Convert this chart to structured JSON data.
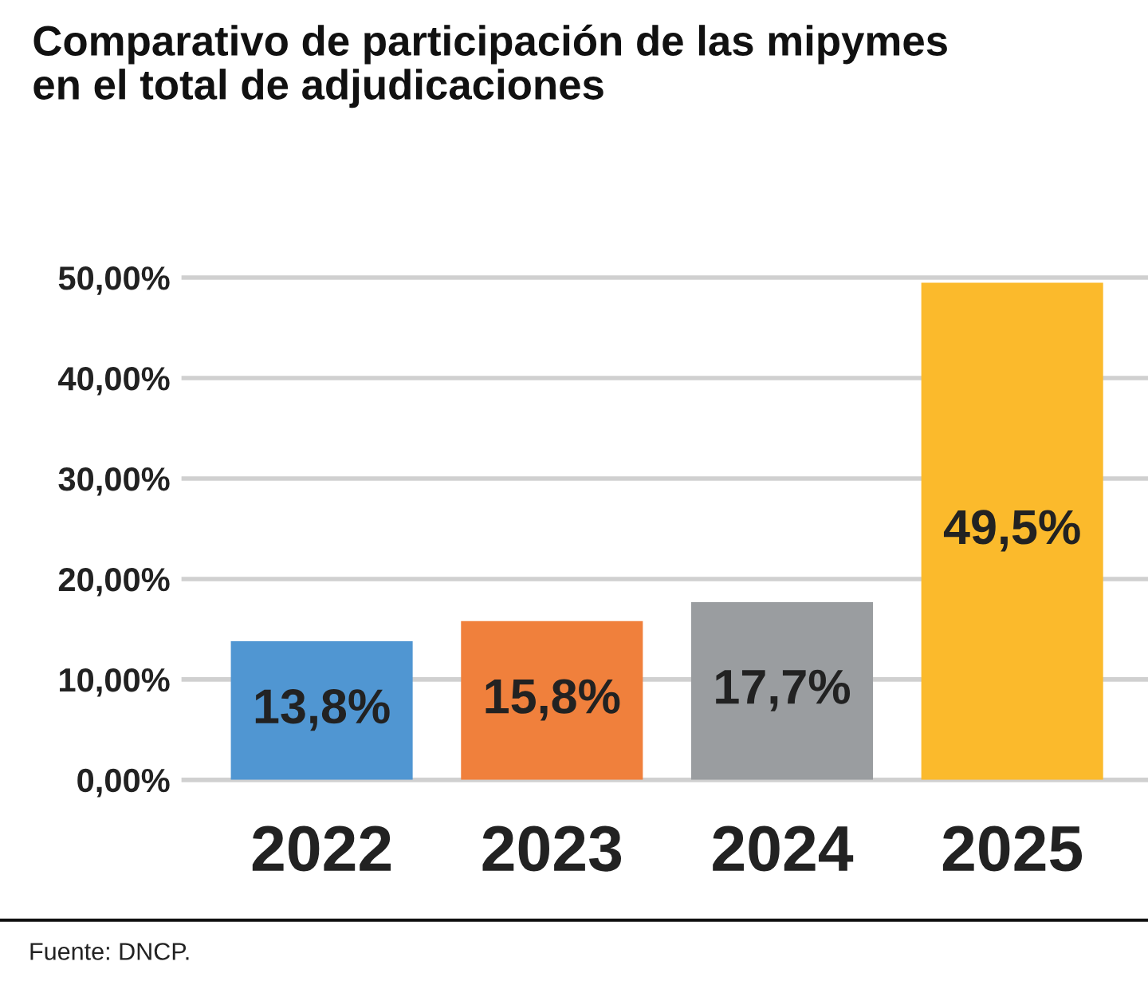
{
  "chart_data": {
    "type": "bar",
    "title": "Comparativo de participación de las mipymes\nen el total de adjudicaciones",
    "categories": [
      "2022",
      "2023",
      "2024",
      "2025"
    ],
    "values": [
      13.8,
      15.8,
      17.7,
      49.5
    ],
    "colors": [
      "#5096d2",
      "#f0803c",
      "#9a9da0",
      "#fbba2c"
    ],
    "value_labels": [
      "13,8%",
      "15,8%",
      "17,7%",
      "49,5%"
    ],
    "ylim": [
      0,
      50
    ],
    "yticks": [
      {
        "value": 0,
        "label": "0,00%"
      },
      {
        "value": 10,
        "label": "10,00%"
      },
      {
        "value": 20,
        "label": "20,00%"
      },
      {
        "value": 30,
        "label": "30,00%"
      },
      {
        "value": 40,
        "label": "40,00%"
      },
      {
        "value": 50,
        "label": "50,00%"
      }
    ],
    "grid": "y",
    "annotations": [
      "Fuente: DNCP."
    ]
  }
}
